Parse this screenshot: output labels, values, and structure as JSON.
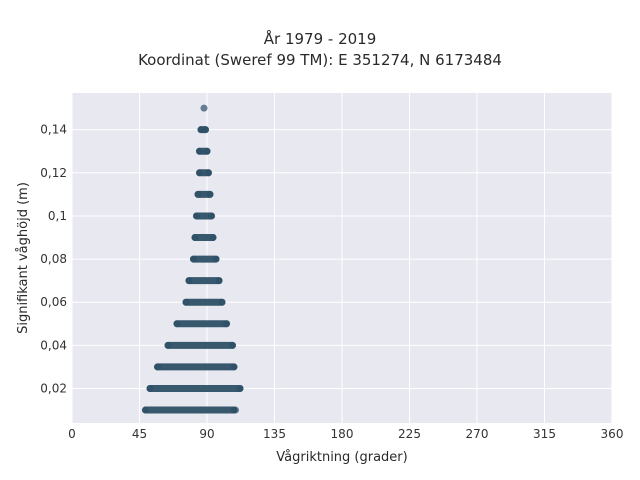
{
  "chart_data": {
    "type": "scatter",
    "title_lines": [
      "År 1979 - 2019",
      "Koordinat (Sweref 99 TM): E 351274, N 6173484"
    ],
    "xlabel": "Vågriktning (grader)",
    "ylabel": "Signifikant våghöjd (m)",
    "xlim": [
      0,
      360
    ],
    "ylim": [
      0.004,
      0.157
    ],
    "x_ticks": [
      0,
      45,
      90,
      135,
      180,
      225,
      270,
      315,
      360
    ],
    "x_tick_labels": [
      "0",
      "45",
      "90",
      "135",
      "180",
      "225",
      "270",
      "315",
      "360"
    ],
    "y_ticks": [
      0.02,
      0.04,
      0.06,
      0.08,
      0.1,
      0.12,
      0.14
    ],
    "y_tick_labels": [
      "0,02",
      "0,04",
      "0,06",
      "0,08",
      "0,1",
      "0,12",
      "0,14"
    ],
    "grid": true,
    "colors": {
      "marker": "#2e5066",
      "plot_bg": "#e8e8f0",
      "grid": "#ffffff"
    },
    "bands": [
      {
        "y": 0.01,
        "x_min": 49,
        "x_max": 108
      },
      {
        "y": 0.02,
        "x_min": 52,
        "x_max": 112
      },
      {
        "y": 0.03,
        "x_min": 57,
        "x_max": 108
      },
      {
        "y": 0.04,
        "x_min": 64,
        "x_max": 107
      },
      {
        "y": 0.05,
        "x_min": 70,
        "x_max": 103
      },
      {
        "y": 0.06,
        "x_min": 76,
        "x_max": 100
      },
      {
        "y": 0.07,
        "x_min": 78,
        "x_max": 98
      },
      {
        "y": 0.08,
        "x_min": 81,
        "x_max": 96
      },
      {
        "y": 0.09,
        "x_min": 82,
        "x_max": 94
      },
      {
        "y": 0.1,
        "x_min": 83,
        "x_max": 93
      },
      {
        "y": 0.11,
        "x_min": 84,
        "x_max": 92
      },
      {
        "y": 0.12,
        "x_min": 85,
        "x_max": 91
      },
      {
        "y": 0.13,
        "x_min": 85,
        "x_max": 90
      },
      {
        "y": 0.14,
        "x_min": 86,
        "x_max": 89
      }
    ],
    "points": [
      {
        "x": 88,
        "y": 0.15
      },
      {
        "x": 109,
        "y": 0.01
      }
    ]
  }
}
